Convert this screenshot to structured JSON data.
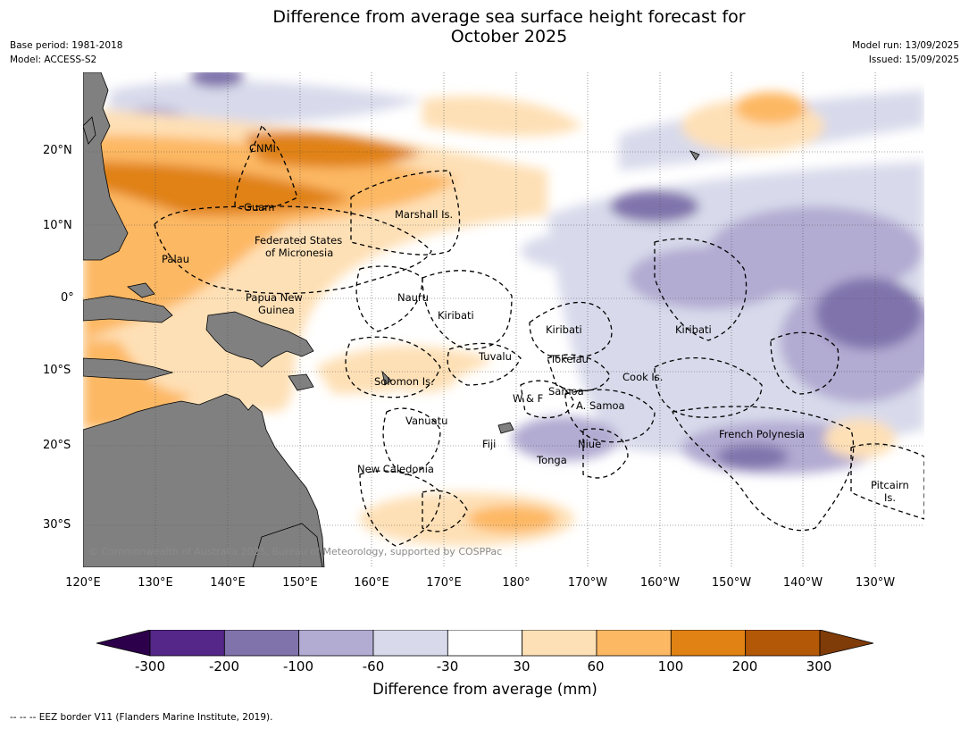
{
  "title_line1": "Difference from average sea surface height forecast for",
  "title_line2": "October 2025",
  "meta": {
    "base_period": "Base period: 1981-2018",
    "model": "Model: ACCESS-S2",
    "model_run": "Model run: 13/09/2025",
    "issued": "Issued: 15/09/2025"
  },
  "map": {
    "lat_labels": [
      "20°N",
      "10°N",
      "0°",
      "10°S",
      "20°S",
      "30°S"
    ],
    "lon_labels": [
      "120°E",
      "130°E",
      "140°E",
      "150°E",
      "160°E",
      "170°E",
      "180°",
      "170°W",
      "160°W",
      "150°W",
      "140°W",
      "130°W"
    ],
    "regions": {
      "cnmi": "CNMI",
      "guam": "Guam",
      "marshall": "Marshall Is.",
      "fsm_1": "Federated States",
      "fsm_2": "of Micronesia",
      "palau": "Palau",
      "png_1": "Papua New",
      "png_2": "Guinea",
      "nauru": "Nauru",
      "kiribati_w": "Kiribati",
      "kiribati_c": "Kiribati",
      "kiribati_e": "Kiribati",
      "tuvalu": "Tuvalu",
      "tokelau": "Tokelau",
      "solomon": "Solomon Is.",
      "samoa": "Samoa",
      "wf": "W & F",
      "cook": "Cook Is.",
      "asamoa": "A. Samoa",
      "vanuatu": "Vanuatu",
      "fiji": "Fiji",
      "niue": "Niue",
      "tonga": "Tonga",
      "frpoly": "French Polynesia",
      "newcal": "New Caledonia",
      "pitcairn_1": "Pitcairn",
      "pitcairn_2": "Is."
    },
    "copyright": "© Commonwealth of Australia 2025, Bureau of Meteorology, supported by COSPPac"
  },
  "colorbar": {
    "ticks": [
      "-300",
      "-200",
      "-100",
      "-60",
      "-30",
      "30",
      "60",
      "100",
      "200",
      "300"
    ],
    "colors": [
      "#2d004b",
      "#542788",
      "#8073ac",
      "#b2abd2",
      "#d8daeb",
      "#ffffff",
      "#fee0b6",
      "#fdb863",
      "#e08214",
      "#b35806",
      "#7f3b08"
    ],
    "title": "Difference from average (mm)"
  },
  "footnote": "--  --  -- EEZ border V11 (Flanders Marine Institute, 2019)."
}
